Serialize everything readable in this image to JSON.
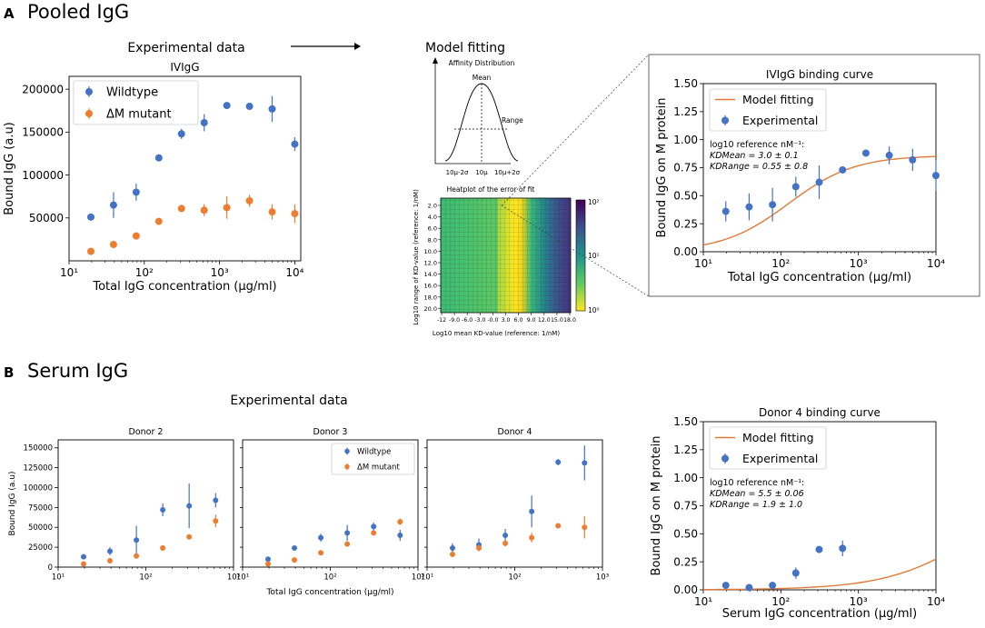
{
  "panel_a": {
    "letter": "A",
    "title": "Pooled IgG",
    "experimental_label": "Experimental data",
    "model_label": "Model fitting"
  },
  "panel_b": {
    "letter": "B",
    "title": "Serum IgG",
    "experimental_label": "Experimental data"
  },
  "colors": {
    "wildtype": "#4472c4",
    "mutant": "#ed7d31",
    "fit": "#e07b39"
  },
  "affinity_diagram": {
    "title": "Affinity Distribution",
    "mean_label": "Mean",
    "range_label": "Range",
    "tick_labels": [
      "10µ-2σ",
      "10µ",
      "10µ+2σ"
    ]
  },
  "heatmap": {
    "title": "Heatplot of the error of fit",
    "xlabel": "Log10 mean KD-value (reference: 1/nM)",
    "ylabel": "Log10 range of KD-value (reference: 1/nM)",
    "x_ticks": [
      "-12",
      "-9.0",
      "-6.0",
      "-3.0",
      "-0.0",
      "3.0",
      "6.0",
      "9.0",
      "12.0",
      "15.0",
      "18.0"
    ],
    "y_ticks": [
      "2.0",
      "4.0",
      "6.0",
      "8.0",
      "10.0",
      "12.0",
      "14.0",
      "16.0",
      "18.0",
      "20.0"
    ],
    "colorbar_ticks": [
      "10²",
      "10¹",
      "10⁰"
    ]
  },
  "chart_data": [
    {
      "id": "ivig",
      "type": "scatter",
      "title": "IVIgG",
      "xlabel": "Total IgG concentration (µg/ml)",
      "ylabel": "Bound IgG (a.u)",
      "xscale": "log",
      "xlim": [
        10,
        12000
      ],
      "ylim": [
        0,
        215000
      ],
      "x_ticks": [
        "10¹",
        "10²",
        "10³",
        "10⁴"
      ],
      "y_ticks": [
        "50000",
        "100000",
        "150000",
        "200000"
      ],
      "legend": [
        "Wildtype",
        "ΔM mutant"
      ],
      "legend_position": "top-left",
      "series": [
        {
          "name": "Wildtype",
          "x": [
            19.5,
            39,
            78,
            156,
            312,
            625,
            1250,
            2500,
            5000,
            10000
          ],
          "y": [
            51000,
            65000,
            80000,
            120000,
            148000,
            161000,
            181000,
            180000,
            177000,
            136000
          ],
          "err": [
            1000,
            15000,
            10000,
            2000,
            6000,
            10000,
            4000,
            2000,
            15000,
            8000
          ]
        },
        {
          "name": "ΔM mutant",
          "x": [
            19.5,
            39,
            78,
            156,
            312,
            625,
            1250,
            2500,
            5000,
            10000
          ],
          "y": [
            11000,
            19000,
            29000,
            46000,
            61000,
            59000,
            62000,
            70000,
            57000,
            55000
          ],
          "err": [
            1000,
            1000,
            1000,
            1000,
            3000,
            7000,
            13000,
            7000,
            9000,
            11000
          ]
        }
      ]
    },
    {
      "id": "ivig_fit",
      "type": "line",
      "title": "IVIgG binding curve",
      "xlabel": "Total IgG concentration (µg/ml)",
      "ylabel": "Bound IgG on M protein",
      "xscale": "log",
      "xlim": [
        10,
        10000
      ],
      "ylim": [
        0,
        1.5
      ],
      "x_ticks": [
        "10¹",
        "10²",
        "10³",
        "10⁴"
      ],
      "y_ticks": [
        "0.00",
        "0.25",
        "0.50",
        "0.75",
        "1.00",
        "1.25",
        "1.50"
      ],
      "legend": [
        "Model fitting",
        "Experimental"
      ],
      "legend_position": "top-left",
      "annotation": [
        "log10 reference nM⁻¹:",
        "KDMean = 3.0 ± 0.1",
        "KDRange = 0.55 ± 0.8"
      ],
      "fit": {
        "kd_mean_log10": 3.0,
        "kd_range": 0.55,
        "max": 0.86,
        "x_start": 10,
        "x_end": 10000
      },
      "series": [
        {
          "name": "Experimental",
          "x": [
            19.5,
            39,
            78,
            156,
            312,
            625,
            1250,
            2500,
            5000,
            10000
          ],
          "y": [
            0.36,
            0.4,
            0.42,
            0.58,
            0.62,
            0.73,
            0.88,
            0.86,
            0.82,
            0.68
          ],
          "err": [
            0.09,
            0.12,
            0.15,
            0.09,
            0.15,
            0.02,
            0.03,
            0.08,
            0.1,
            0.14
          ]
        }
      ]
    },
    {
      "id": "donor2",
      "type": "scatter",
      "title": "Donor 2",
      "ylabel": "Bound IgG (a.u)",
      "xscale": "log",
      "xlim": [
        10,
        1000
      ],
      "ylim": [
        0,
        160000
      ],
      "x_ticks": [
        "10¹",
        "10²",
        "10³"
      ],
      "y_ticks": [
        "0",
        "25000",
        "50000",
        "75000",
        "100000",
        "125000",
        "150000"
      ],
      "series": [
        {
          "name": "Wildtype",
          "x": [
            19.5,
            39,
            78,
            156,
            312,
            625
          ],
          "y": [
            13000,
            20000,
            34000,
            72000,
            77000,
            84000
          ],
          "err": [
            2000,
            5000,
            18000,
            8000,
            28000,
            9000
          ]
        },
        {
          "name": "ΔM mutant",
          "x": [
            19.5,
            39,
            78,
            156,
            312,
            625
          ],
          "y": [
            4000,
            8000,
            14000,
            24000,
            38000,
            58000
          ],
          "err": [
            500,
            1000,
            1000,
            1000,
            2000,
            8000
          ]
        }
      ]
    },
    {
      "id": "donor3",
      "type": "scatter",
      "title": "Donor 3",
      "xlabel": "Total IgG concentration (µg/ml)",
      "xscale": "log",
      "xlim": [
        10,
        1000
      ],
      "ylim": [
        0,
        160000
      ],
      "x_ticks": [
        "10¹",
        "10²",
        "10³"
      ],
      "legend": [
        "Wildtype",
        "ΔM mutant"
      ],
      "legend_position": "top-right",
      "series": [
        {
          "name": "Wildtype",
          "x": [
            19.5,
            39,
            78,
            156,
            312,
            625
          ],
          "y": [
            10000,
            24000,
            37000,
            43000,
            51000,
            40000
          ],
          "err": [
            1000,
            2000,
            5000,
            10000,
            5000,
            7000
          ]
        },
        {
          "name": "ΔM mutant",
          "x": [
            19.5,
            39,
            78,
            156,
            312,
            625
          ],
          "y": [
            4000,
            9000,
            18000,
            29000,
            43000,
            57000
          ],
          "err": [
            500,
            500,
            1000,
            2000,
            3000,
            4000
          ]
        }
      ]
    },
    {
      "id": "donor4",
      "type": "scatter",
      "title": "Donor 4",
      "xscale": "log",
      "xlim": [
        10,
        1000
      ],
      "ylim": [
        0,
        160000
      ],
      "x_ticks": [
        "10¹",
        "10²",
        "10³"
      ],
      "series": [
        {
          "name": "Wildtype",
          "x": [
            19.5,
            39,
            78,
            156,
            312,
            625
          ],
          "y": [
            24000,
            28000,
            40000,
            70000,
            132000,
            131000
          ],
          "err": [
            6000,
            8000,
            8000,
            20000,
            4000,
            22000
          ]
        },
        {
          "name": "ΔM mutant",
          "x": [
            19.5,
            39,
            78,
            156,
            312,
            625
          ],
          "y": [
            16000,
            24000,
            30000,
            37000,
            52000,
            50000
          ],
          "err": [
            1000,
            4000,
            4000,
            6000,
            2000,
            14000
          ]
        }
      ]
    },
    {
      "id": "donor4_fit",
      "type": "line",
      "title": "Donor 4 binding curve",
      "xlabel": "Serum IgG concentration (µg/ml)",
      "ylabel": "Bound IgG on M protein",
      "xscale": "log",
      "xlim": [
        10,
        10000
      ],
      "ylim": [
        0,
        1.5
      ],
      "x_ticks": [
        "10¹",
        "10²",
        "10³",
        "10⁴"
      ],
      "y_ticks": [
        "0.00",
        "0.25",
        "0.50",
        "0.75",
        "1.00",
        "1.25",
        "1.50"
      ],
      "legend": [
        "Model fitting",
        "Experimental"
      ],
      "legend_position": "top-left",
      "annotation": [
        "log10 reference nM⁻¹:",
        "KDMean = 5.5 ± 0.06",
        "KDRange = 1.9 ± 1.0"
      ],
      "fit": {
        "kd_mean_log10": 5.5,
        "kd_range": 1.9,
        "max": 1.05,
        "x_start": 10,
        "x_end": 10000
      },
      "series": [
        {
          "name": "Experimental",
          "x": [
            19.5,
            39,
            78,
            156,
            312,
            625
          ],
          "y": [
            0.04,
            0.02,
            0.04,
            0.15,
            0.36,
            0.37
          ],
          "err": [
            0.01,
            0.01,
            0.03,
            0.05,
            0.02,
            0.07
          ]
        }
      ]
    }
  ]
}
